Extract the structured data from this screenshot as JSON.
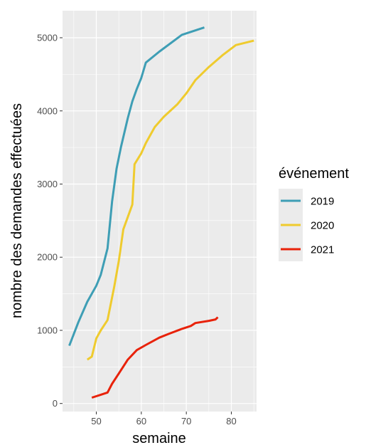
{
  "chart_data": {
    "type": "line",
    "xlabel": "semaine",
    "ylabel": "nombre des demandes effectuées",
    "xlim": [
      42.5,
      85.6
    ],
    "ylim": [
      -110,
      5370
    ],
    "x_ticks": [
      50,
      60,
      70,
      80
    ],
    "x_minor": [
      45,
      55,
      65,
      75,
      85
    ],
    "y_ticks": [
      0,
      1000,
      2000,
      3000,
      4000,
      5000
    ],
    "y_minor": [
      500,
      1500,
      2500,
      3500,
      4500
    ],
    "grid": true,
    "legend": {
      "title": "événement",
      "position": "right"
    },
    "series": [
      {
        "name": "2019",
        "color": "#3E9EB5",
        "points": [
          [
            44,
            790
          ],
          [
            46,
            1110
          ],
          [
            48,
            1390
          ],
          [
            50,
            1610
          ],
          [
            51,
            1760
          ],
          [
            52.5,
            2120
          ],
          [
            53.5,
            2760
          ],
          [
            54.5,
            3210
          ],
          [
            55.5,
            3510
          ],
          [
            57,
            3900
          ],
          [
            58,
            4130
          ],
          [
            59,
            4300
          ],
          [
            60,
            4450
          ],
          [
            61,
            4660
          ],
          [
            64,
            4810
          ],
          [
            69,
            5040
          ],
          [
            74,
            5140
          ]
        ]
      },
      {
        "name": "2020",
        "color": "#EFCB2E",
        "points": [
          [
            48,
            600
          ],
          [
            49,
            640
          ],
          [
            50,
            890
          ],
          [
            51,
            1000
          ],
          [
            52.5,
            1140
          ],
          [
            54,
            1600
          ],
          [
            55,
            1950
          ],
          [
            56,
            2380
          ],
          [
            58,
            2720
          ],
          [
            58.5,
            3270
          ],
          [
            60,
            3420
          ],
          [
            61,
            3560
          ],
          [
            63,
            3780
          ],
          [
            65,
            3920
          ],
          [
            68,
            4090
          ],
          [
            70,
            4240
          ],
          [
            72,
            4420
          ],
          [
            75,
            4600
          ],
          [
            78,
            4760
          ],
          [
            81,
            4900
          ],
          [
            85,
            4960
          ]
        ]
      },
      {
        "name": "2021",
        "color": "#E8220A",
        "points": [
          [
            49,
            80
          ],
          [
            51,
            120
          ],
          [
            52.5,
            150
          ],
          [
            53.5,
            270
          ],
          [
            55,
            410
          ],
          [
            57,
            600
          ],
          [
            59,
            730
          ],
          [
            61,
            800
          ],
          [
            64,
            900
          ],
          [
            66,
            950
          ],
          [
            69,
            1020
          ],
          [
            71,
            1060
          ],
          [
            72,
            1100
          ],
          [
            75,
            1130
          ],
          [
            76.5,
            1150
          ],
          [
            77,
            1180
          ]
        ]
      }
    ]
  }
}
